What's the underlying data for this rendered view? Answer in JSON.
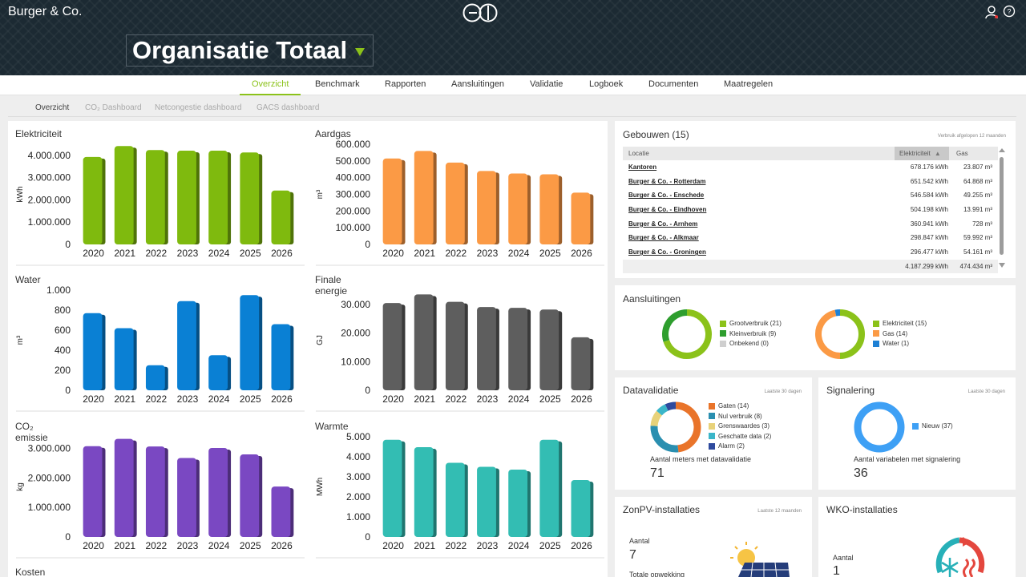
{
  "app": {
    "brand": "Burger & Co.",
    "org_title": "Organisatie Totaal"
  },
  "icons": {
    "user": "user-icon",
    "help": "help-icon",
    "logo": "logo-icon",
    "caret": "caret-down-icon"
  },
  "colors": {
    "accent": "#8bc21a",
    "electric": "#7fba0e",
    "gas": "#fb9a45",
    "water": "#0a80d4",
    "energy": "#5e5e5e",
    "co2": "#7a48c2",
    "heat": "#33bdb3"
  },
  "nav": {
    "tabs": [
      "Overzicht",
      "Benchmark",
      "Rapporten",
      "Aansluitingen",
      "Validatie",
      "Logboek",
      "Documenten",
      "Maatregelen"
    ],
    "active": "Overzicht"
  },
  "subnav": {
    "items": [
      "Overzicht",
      "CO₂ Dashboard",
      "Netcongestie dashboard",
      "GACS dashboard"
    ],
    "active": "Overzicht"
  },
  "charts": [
    {
      "title": "Elektriciteit",
      "ylabel": "kWh",
      "color": "#7fba0e",
      "ticks": [
        "0",
        "1.000.000",
        "2.000.000",
        "3.000.000",
        "4.000.000"
      ],
      "ymax": 4500000,
      "ytop": 4000000,
      "chart_data": {
        "type": "bar",
        "categories": [
          "2020",
          "2021",
          "2022",
          "2023",
          "2024",
          "2025",
          "2026"
        ],
        "values": [
          3930000,
          4420000,
          4240000,
          4210000,
          4210000,
          4130000,
          2420000
        ],
        "ylim": [
          0,
          4500000
        ]
      }
    },
    {
      "title": "Aardgas",
      "ylabel": "m³",
      "color": "#fb9a45",
      "ticks": [
        "0",
        "100.000",
        "200.000",
        "300.000",
        "400.000",
        "500.000",
        "600.000"
      ],
      "ymax": 600000,
      "ytop": 600000,
      "chart_data": {
        "type": "bar",
        "categories": [
          "2020",
          "2021",
          "2022",
          "2023",
          "2024",
          "2025",
          "2026"
        ],
        "values": [
          515000,
          560000,
          490000,
          440000,
          425000,
          420000,
          310000
        ],
        "ylim": [
          0,
          600000
        ]
      }
    },
    {
      "title": "Water",
      "ylabel": "m³",
      "color": "#0a80d4",
      "ticks": [
        "0",
        "200",
        "400",
        "600",
        "800",
        "1.000"
      ],
      "ymax": 1000,
      "ytop": 1000,
      "chart_data": {
        "type": "bar",
        "categories": [
          "2020",
          "2021",
          "2022",
          "2023",
          "2024",
          "2025",
          "2026"
        ],
        "values": [
          770,
          620,
          250,
          890,
          350,
          950,
          660
        ],
        "ylim": [
          0,
          1000
        ]
      }
    },
    {
      "title": "Finale energie",
      "ylabel": "GJ",
      "color": "#5e5e5e",
      "ticks": [
        "0",
        "10.000",
        "20.000",
        "30.000"
      ],
      "ymax": 35000,
      "ytop": 30000,
      "chart_data": {
        "type": "bar",
        "categories": [
          "2020",
          "2021",
          "2022",
          "2023",
          "2024",
          "2025",
          "2026"
        ],
        "values": [
          30500,
          33500,
          30900,
          29100,
          28800,
          28200,
          18500
        ],
        "ylim": [
          0,
          35000
        ]
      }
    },
    {
      "title": "CO₂ emissie",
      "ylabel": "kg",
      "color": "#7a48c2",
      "ticks": [
        "0",
        "1.000.000",
        "2.000.000",
        "3.000.000"
      ],
      "ymax": 3400000,
      "ytop": 3000000,
      "chart_data": {
        "type": "bar",
        "categories": [
          "2020",
          "2021",
          "2022",
          "2023",
          "2024",
          "2025",
          "2026"
        ],
        "values": [
          3080000,
          3330000,
          3070000,
          2680000,
          3020000,
          2800000,
          1710000
        ],
        "ylim": [
          0,
          3400000
        ]
      }
    },
    {
      "title": "Warmte",
      "ylabel": "MWh",
      "color": "#33bdb3",
      "ticks": [
        "0",
        "1.000",
        "2.000",
        "3.000",
        "4.000",
        "5.000"
      ],
      "ymax": 5000,
      "ytop": 5000,
      "chart_data": {
        "type": "bar",
        "categories": [
          "2020",
          "2021",
          "2022",
          "2023",
          "2024",
          "2025",
          "2026"
        ],
        "values": [
          4850,
          4480,
          3700,
          3500,
          3360,
          4850,
          2840
        ],
        "ylim": [
          0,
          5000
        ]
      }
    }
  ],
  "kosten": {
    "title": "Kosten"
  },
  "gebouwen": {
    "title": "Gebouwen (15)",
    "subtitle": "Verbruik afgelopen 12 maanden",
    "columns": [
      "Locatie",
      "Elektriciteit",
      "Gas"
    ],
    "rows": [
      {
        "loc": "Kantoren",
        "el": "678.176 kWh",
        "gas": "23.807 m³"
      },
      {
        "loc": "Burger & Co. - Rotterdam",
        "el": "651.542 kWh",
        "gas": "64.868 m³"
      },
      {
        "loc": "Burger & Co. - Enschede",
        "el": "546.584 kWh",
        "gas": "49.255 m³"
      },
      {
        "loc": "Burger & Co. - Eindhoven",
        "el": "504.198 kWh",
        "gas": "13.991 m³"
      },
      {
        "loc": "Burger & Co. - Arnhem",
        "el": "360.941 kWh",
        "gas": "728 m³"
      },
      {
        "loc": "Burger & Co. - Alkmaar",
        "el": "298.847 kWh",
        "gas": "59.992 m³"
      },
      {
        "loc": "Burger & Co. - Groningen",
        "el": "296.477 kWh",
        "gas": "54.161 m³"
      }
    ],
    "total": {
      "el": "4.187.299 kWh",
      "gas": "474.434 m³"
    }
  },
  "aansluitingen": {
    "title": "Aansluitingen",
    "donut1": [
      {
        "label": "Grootverbruik (21)",
        "value": 21,
        "color": "#8bc21a"
      },
      {
        "label": "Kleinverbruik (9)",
        "value": 9,
        "color": "#2e9e2e"
      },
      {
        "label": "Onbekend (0)",
        "value": 0,
        "color": "#cfcfcf"
      }
    ],
    "donut2": [
      {
        "label": "Elektriciteit (15)",
        "value": 15,
        "color": "#8bc21a"
      },
      {
        "label": "Gas (14)",
        "value": 14,
        "color": "#fb9a45"
      },
      {
        "label": "Water (1)",
        "value": 1,
        "color": "#1e80d4"
      }
    ]
  },
  "datavalidatie": {
    "title": "Datavalidatie",
    "subtitle": "Laatste 30 dagen",
    "items": [
      {
        "label": "Gaten (14)",
        "value": 14,
        "color": "#e9742a"
      },
      {
        "label": "Nul verbruik (8)",
        "value": 8,
        "color": "#2a8fb0"
      },
      {
        "label": "Grenswaardes (3)",
        "value": 3,
        "color": "#e8d27a"
      },
      {
        "label": "Geschatte data (2)",
        "value": 2,
        "color": "#3bb6c9"
      },
      {
        "label": "Alarm (2)",
        "value": 2,
        "color": "#2e4a9e"
      }
    ],
    "count_label": "Aantal meters met datavalidatie",
    "count": "71"
  },
  "signalering": {
    "title": "Signalering",
    "subtitle": "Laatste 30 dagen",
    "items": [
      {
        "label": "Nieuw (37)",
        "value": 37,
        "color": "#3ea0f5"
      }
    ],
    "count_label": "Aantal variabelen met signalering",
    "count": "36"
  },
  "zonpv": {
    "title": "ZonPV-installaties",
    "subtitle": "Laatste 12 maanden",
    "aantal_label": "Aantal",
    "aantal": "7",
    "opwekking_label": "Totale opwekking",
    "icon": "solar-panel-icon"
  },
  "wko": {
    "title": "WKO-installaties",
    "aantal_label": "Aantal",
    "aantal": "1",
    "icon": "heat-cold-icon"
  }
}
